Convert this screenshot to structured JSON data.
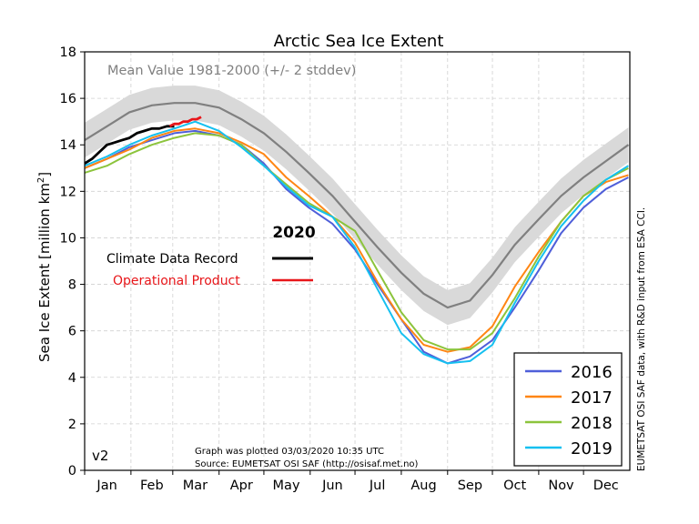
{
  "chart_data": {
    "type": "line",
    "title": "Arctic Sea Ice Extent",
    "ylabel_main": "Sea Ice Extent [million km",
    "ylabel_sup": "2",
    "ylabel_close": "]",
    "xlabel": "",
    "ylim": [
      0,
      18
    ],
    "xlim": [
      0,
      365
    ],
    "y_ticks": [
      0,
      2,
      4,
      6,
      8,
      10,
      12,
      14,
      16,
      18
    ],
    "x_tick_labels": [
      "Jan",
      "Feb",
      "Mar",
      "Apr",
      "May",
      "Jun",
      "Jul",
      "Aug",
      "Sep",
      "Oct",
      "Nov",
      "Dec"
    ],
    "x_tick_days": [
      15,
      45,
      74,
      105,
      135,
      166,
      196,
      227,
      258,
      288,
      319,
      349
    ],
    "grid": true,
    "mean_band_label": "Mean Value 1981-2000 (+/- 2 stddev)",
    "mean_color": "#808080",
    "band_color": "#d9d9d9",
    "mean": {
      "x": [
        0,
        15,
        30,
        45,
        60,
        74,
        90,
        105,
        120,
        135,
        150,
        166,
        181,
        196,
        212,
        227,
        243,
        258,
        273,
        288,
        304,
        319,
        334,
        349,
        364
      ],
      "y": [
        14.2,
        14.8,
        15.4,
        15.7,
        15.8,
        15.8,
        15.6,
        15.1,
        14.5,
        13.7,
        12.8,
        11.8,
        10.7,
        9.6,
        8.5,
        7.6,
        7.0,
        7.3,
        8.4,
        9.7,
        10.8,
        11.8,
        12.6,
        13.3,
        14.0
      ]
    },
    "band_half_width": 0.75,
    "current_year_label": "2020",
    "current_series": [
      {
        "name": "Climate Data Record",
        "color": "#000000",
        "x": [
          0,
          5,
          10,
          15,
          20,
          25,
          30,
          35,
          40,
          45,
          50,
          55,
          60
        ],
        "y": [
          13.2,
          13.4,
          13.7,
          14.0,
          14.1,
          14.2,
          14.3,
          14.5,
          14.6,
          14.7,
          14.7,
          14.8,
          14.8
        ]
      },
      {
        "name": "Operational Product",
        "color": "#e8161a",
        "x": [
          57,
          60,
          63,
          66,
          69,
          72,
          75,
          78
        ],
        "y": [
          14.8,
          14.9,
          14.9,
          15.0,
          15.0,
          15.1,
          15.1,
          15.2
        ]
      }
    ],
    "series": [
      {
        "name": "2016",
        "color": "#4f5fd9",
        "x": [
          0,
          15,
          30,
          45,
          60,
          74,
          90,
          105,
          120,
          135,
          150,
          166,
          181,
          196,
          212,
          227,
          243,
          258,
          273,
          288,
          304,
          319,
          334,
          349,
          364
        ],
        "y": [
          13.0,
          13.4,
          13.9,
          14.2,
          14.5,
          14.6,
          14.4,
          14.0,
          13.2,
          12.1,
          11.3,
          10.6,
          9.5,
          8.0,
          6.5,
          5.1,
          4.6,
          4.9,
          5.6,
          7.0,
          8.6,
          10.2,
          11.3,
          12.1,
          12.6
        ]
      },
      {
        "name": "2017",
        "color": "#ff8614",
        "x": [
          0,
          15,
          30,
          45,
          60,
          74,
          90,
          105,
          120,
          135,
          150,
          166,
          181,
          196,
          212,
          227,
          243,
          258,
          273,
          288,
          304,
          319,
          334,
          349,
          364
        ],
        "y": [
          13.0,
          13.4,
          13.8,
          14.3,
          14.6,
          14.7,
          14.5,
          14.1,
          13.6,
          12.6,
          11.8,
          10.9,
          9.8,
          8.1,
          6.5,
          5.4,
          5.1,
          5.3,
          6.2,
          7.9,
          9.4,
          10.7,
          11.8,
          12.4,
          12.7
        ]
      },
      {
        "name": "2018",
        "color": "#8cc43c",
        "x": [
          0,
          15,
          30,
          45,
          60,
          74,
          90,
          105,
          120,
          135,
          150,
          166,
          181,
          196,
          212,
          227,
          243,
          258,
          273,
          288,
          304,
          319,
          334,
          349,
          364
        ],
        "y": [
          12.8,
          13.1,
          13.6,
          14.0,
          14.3,
          14.5,
          14.4,
          14.0,
          13.1,
          12.3,
          11.5,
          10.9,
          10.3,
          8.6,
          6.8,
          5.6,
          5.2,
          5.2,
          5.9,
          7.4,
          9.2,
          10.7,
          11.8,
          12.5,
          13.0
        ]
      },
      {
        "name": "2019",
        "color": "#15c0f0",
        "x": [
          0,
          15,
          30,
          45,
          60,
          74,
          90,
          105,
          120,
          135,
          150,
          166,
          181,
          196,
          212,
          227,
          243,
          258,
          273,
          288,
          304,
          319,
          334,
          349,
          364
        ],
        "y": [
          13.1,
          13.5,
          14.0,
          14.4,
          14.7,
          15.0,
          14.6,
          13.9,
          13.1,
          12.2,
          11.4,
          10.9,
          9.6,
          7.8,
          5.9,
          5.0,
          4.6,
          4.7,
          5.4,
          7.2,
          9.0,
          10.5,
          11.6,
          12.5,
          13.1
        ]
      }
    ],
    "footnote_line1": "Graph was plotted 03/03/2020 10:35 UTC",
    "footnote_line2": "Source: EUMETSAT OSI SAF (http://osisaf.met.no)",
    "side_note": "EUMETSAT OSI SAF data, with R&D input from ESA CCI.",
    "version_label": "v2"
  }
}
